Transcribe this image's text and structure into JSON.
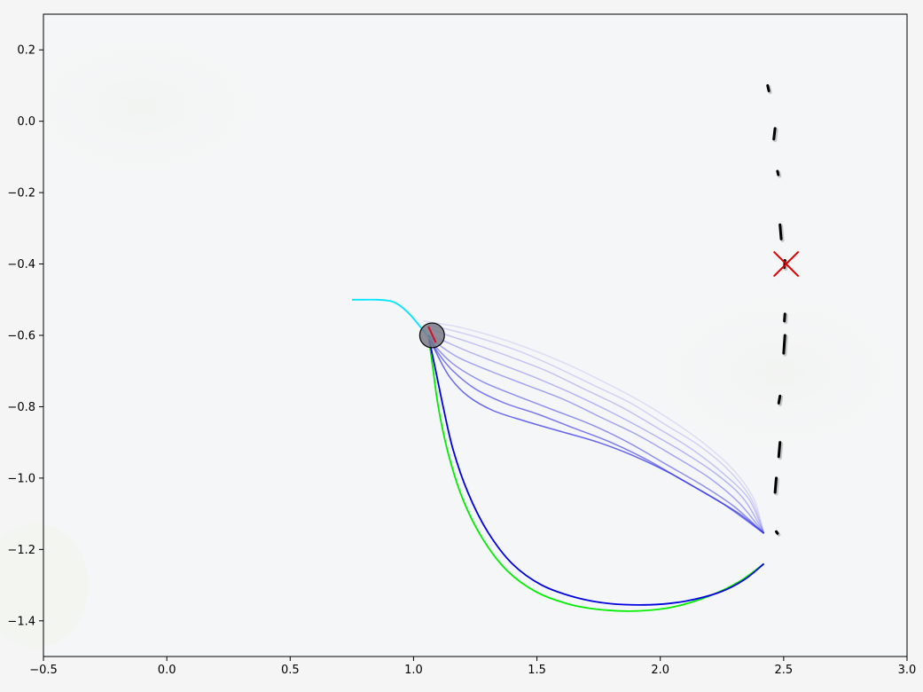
{
  "chart_data": {
    "type": "line",
    "title": "",
    "xlabel": "",
    "ylabel": "",
    "xlim": [
      -0.5,
      3.0
    ],
    "ylim": [
      -1.5,
      0.3
    ],
    "grid": false,
    "x_ticks": [
      -0.5,
      0.0,
      0.5,
      1.0,
      1.5,
      2.0,
      2.5,
      3.0
    ],
    "y_ticks": [
      -1.4,
      -1.2,
      -1.0,
      -0.8,
      -0.6,
      -0.4,
      -0.2,
      0.0,
      0.2
    ],
    "colors": {
      "past_path": "#00e5ff",
      "optimized_path": "#0000e0",
      "reference_path": "#00ee00",
      "candidate_paths": "#2a2ae8",
      "target_marker": "#e00000",
      "heading_segment": "#d0102a",
      "robot_fill": "#7a7a88",
      "obstacles": "#000000"
    },
    "series": [
      {
        "role": "past-path",
        "points": [
          [
            0.75,
            -0.5
          ],
          [
            0.8,
            -0.5
          ],
          [
            0.85,
            -0.5
          ],
          [
            0.9,
            -0.503
          ],
          [
            0.93,
            -0.51
          ],
          [
            0.96,
            -0.525
          ],
          [
            0.99,
            -0.545
          ],
          [
            1.02,
            -0.57
          ],
          [
            1.05,
            -0.595
          ],
          [
            1.07,
            -0.615
          ]
        ]
      },
      {
        "role": "optimized-path",
        "points": [
          [
            1.06,
            -0.6
          ],
          [
            1.09,
            -0.7
          ],
          [
            1.12,
            -0.8
          ],
          [
            1.16,
            -0.92
          ],
          [
            1.22,
            -1.04
          ],
          [
            1.3,
            -1.15
          ],
          [
            1.4,
            -1.24
          ],
          [
            1.52,
            -1.3
          ],
          [
            1.66,
            -1.335
          ],
          [
            1.8,
            -1.352
          ],
          [
            1.96,
            -1.355
          ],
          [
            2.1,
            -1.345
          ],
          [
            2.24,
            -1.32
          ],
          [
            2.34,
            -1.285
          ],
          [
            2.42,
            -1.24
          ]
        ]
      },
      {
        "role": "reference-path",
        "points": [
          [
            1.06,
            -0.6
          ],
          [
            1.08,
            -0.7
          ],
          [
            1.1,
            -0.8
          ],
          [
            1.14,
            -0.93
          ],
          [
            1.2,
            -1.06
          ],
          [
            1.28,
            -1.17
          ],
          [
            1.38,
            -1.26
          ],
          [
            1.5,
            -1.32
          ],
          [
            1.64,
            -1.355
          ],
          [
            1.78,
            -1.37
          ],
          [
            1.92,
            -1.372
          ],
          [
            2.06,
            -1.36
          ],
          [
            2.2,
            -1.33
          ],
          [
            2.32,
            -1.29
          ],
          [
            2.42,
            -1.24
          ]
        ]
      }
    ],
    "candidate_paths": [
      {
        "opacity": 0.7,
        "points": [
          [
            1.06,
            -0.6
          ],
          [
            1.1,
            -0.66
          ],
          [
            1.15,
            -0.72
          ],
          [
            1.22,
            -0.77
          ],
          [
            1.32,
            -0.81
          ],
          [
            1.45,
            -0.84
          ],
          [
            1.6,
            -0.87
          ],
          [
            1.75,
            -0.9
          ],
          [
            1.9,
            -0.94
          ],
          [
            2.05,
            -0.99
          ],
          [
            2.2,
            -1.05
          ],
          [
            2.32,
            -1.1
          ],
          [
            2.42,
            -1.155
          ]
        ]
      },
      {
        "opacity": 0.6,
        "points": [
          [
            1.06,
            -0.6
          ],
          [
            1.1,
            -0.65
          ],
          [
            1.16,
            -0.7
          ],
          [
            1.25,
            -0.75
          ],
          [
            1.37,
            -0.79
          ],
          [
            1.5,
            -0.82
          ],
          [
            1.65,
            -0.86
          ],
          [
            1.8,
            -0.9
          ],
          [
            1.95,
            -0.95
          ],
          [
            2.1,
            -1.01
          ],
          [
            2.25,
            -1.07
          ],
          [
            2.42,
            -1.155
          ]
        ]
      },
      {
        "opacity": 0.5,
        "points": [
          [
            1.06,
            -0.6
          ],
          [
            1.1,
            -0.64
          ],
          [
            1.17,
            -0.685
          ],
          [
            1.28,
            -0.73
          ],
          [
            1.42,
            -0.77
          ],
          [
            1.57,
            -0.81
          ],
          [
            1.72,
            -0.85
          ],
          [
            1.87,
            -0.9
          ],
          [
            2.02,
            -0.96
          ],
          [
            2.17,
            -1.02
          ],
          [
            2.3,
            -1.08
          ],
          [
            2.42,
            -1.155
          ]
        ]
      },
      {
        "opacity": 0.4,
        "points": [
          [
            1.06,
            -0.6
          ],
          [
            1.11,
            -0.63
          ],
          [
            1.19,
            -0.665
          ],
          [
            1.31,
            -0.7
          ],
          [
            1.46,
            -0.74
          ],
          [
            1.61,
            -0.78
          ],
          [
            1.76,
            -0.83
          ],
          [
            1.91,
            -0.88
          ],
          [
            2.06,
            -0.94
          ],
          [
            2.2,
            -1.0
          ],
          [
            2.32,
            -1.07
          ],
          [
            2.42,
            -1.155
          ]
        ]
      },
      {
        "opacity": 0.32,
        "points": [
          [
            1.06,
            -0.6
          ],
          [
            1.12,
            -0.615
          ],
          [
            1.22,
            -0.645
          ],
          [
            1.35,
            -0.68
          ],
          [
            1.5,
            -0.72
          ],
          [
            1.65,
            -0.765
          ],
          [
            1.8,
            -0.815
          ],
          [
            1.95,
            -0.87
          ],
          [
            2.1,
            -0.93
          ],
          [
            2.23,
            -0.99
          ],
          [
            2.34,
            -1.06
          ],
          [
            2.42,
            -1.155
          ]
        ]
      },
      {
        "opacity": 0.25,
        "points": [
          [
            1.06,
            -0.58
          ],
          [
            1.14,
            -0.6
          ],
          [
            1.25,
            -0.625
          ],
          [
            1.39,
            -0.66
          ],
          [
            1.54,
            -0.7
          ],
          [
            1.69,
            -0.75
          ],
          [
            1.84,
            -0.8
          ],
          [
            1.99,
            -0.86
          ],
          [
            2.13,
            -0.92
          ],
          [
            2.26,
            -0.99
          ],
          [
            2.36,
            -1.06
          ],
          [
            2.42,
            -1.155
          ]
        ]
      },
      {
        "opacity": 0.18,
        "points": [
          [
            1.06,
            -0.57
          ],
          [
            1.15,
            -0.585
          ],
          [
            1.28,
            -0.61
          ],
          [
            1.43,
            -0.645
          ],
          [
            1.58,
            -0.69
          ],
          [
            1.73,
            -0.74
          ],
          [
            1.88,
            -0.79
          ],
          [
            2.02,
            -0.85
          ],
          [
            2.16,
            -0.91
          ],
          [
            2.28,
            -0.98
          ],
          [
            2.37,
            -1.06
          ],
          [
            2.42,
            -1.155
          ]
        ]
      },
      {
        "opacity": 0.12,
        "points": [
          [
            1.04,
            -0.56
          ],
          [
            1.17,
            -0.575
          ],
          [
            1.31,
            -0.6
          ],
          [
            1.46,
            -0.635
          ],
          [
            1.62,
            -0.68
          ],
          [
            1.77,
            -0.73
          ],
          [
            1.92,
            -0.785
          ],
          [
            2.06,
            -0.845
          ],
          [
            2.19,
            -0.91
          ],
          [
            2.3,
            -0.98
          ],
          [
            2.38,
            -1.06
          ],
          [
            2.42,
            -1.155
          ]
        ]
      }
    ],
    "obstacles": [
      [
        [
          2.435,
          0.1
        ],
        [
          2.44,
          0.085
        ]
      ],
      [
        [
          2.465,
          -0.02
        ],
        [
          2.46,
          -0.05
        ]
      ],
      [
        [
          2.475,
          -0.14
        ],
        [
          2.478,
          -0.15
        ]
      ],
      [
        [
          2.485,
          -0.29
        ],
        [
          2.49,
          -0.33
        ]
      ],
      [
        [
          2.505,
          -0.39
        ],
        [
          2.503,
          -0.41
        ]
      ],
      [
        [
          2.505,
          -0.54
        ],
        [
          2.503,
          -0.56
        ]
      ],
      [
        [
          2.505,
          -0.6
        ],
        [
          2.5,
          -0.65
        ]
      ],
      [
        [
          2.485,
          -0.77
        ],
        [
          2.48,
          -0.79
        ]
      ],
      [
        [
          2.485,
          -0.9
        ],
        [
          2.48,
          -0.94
        ]
      ],
      [
        [
          2.47,
          -1.0
        ],
        [
          2.465,
          -1.04
        ]
      ],
      [
        [
          2.47,
          -1.15
        ],
        [
          2.475,
          -1.155
        ]
      ]
    ],
    "target": {
      "x": 2.51,
      "y": -0.4
    },
    "robot": {
      "x": 1.075,
      "y": -0.6,
      "radius": 0.05
    },
    "heading": [
      [
        1.06,
        -0.575
      ],
      [
        1.09,
        -0.62
      ]
    ]
  }
}
